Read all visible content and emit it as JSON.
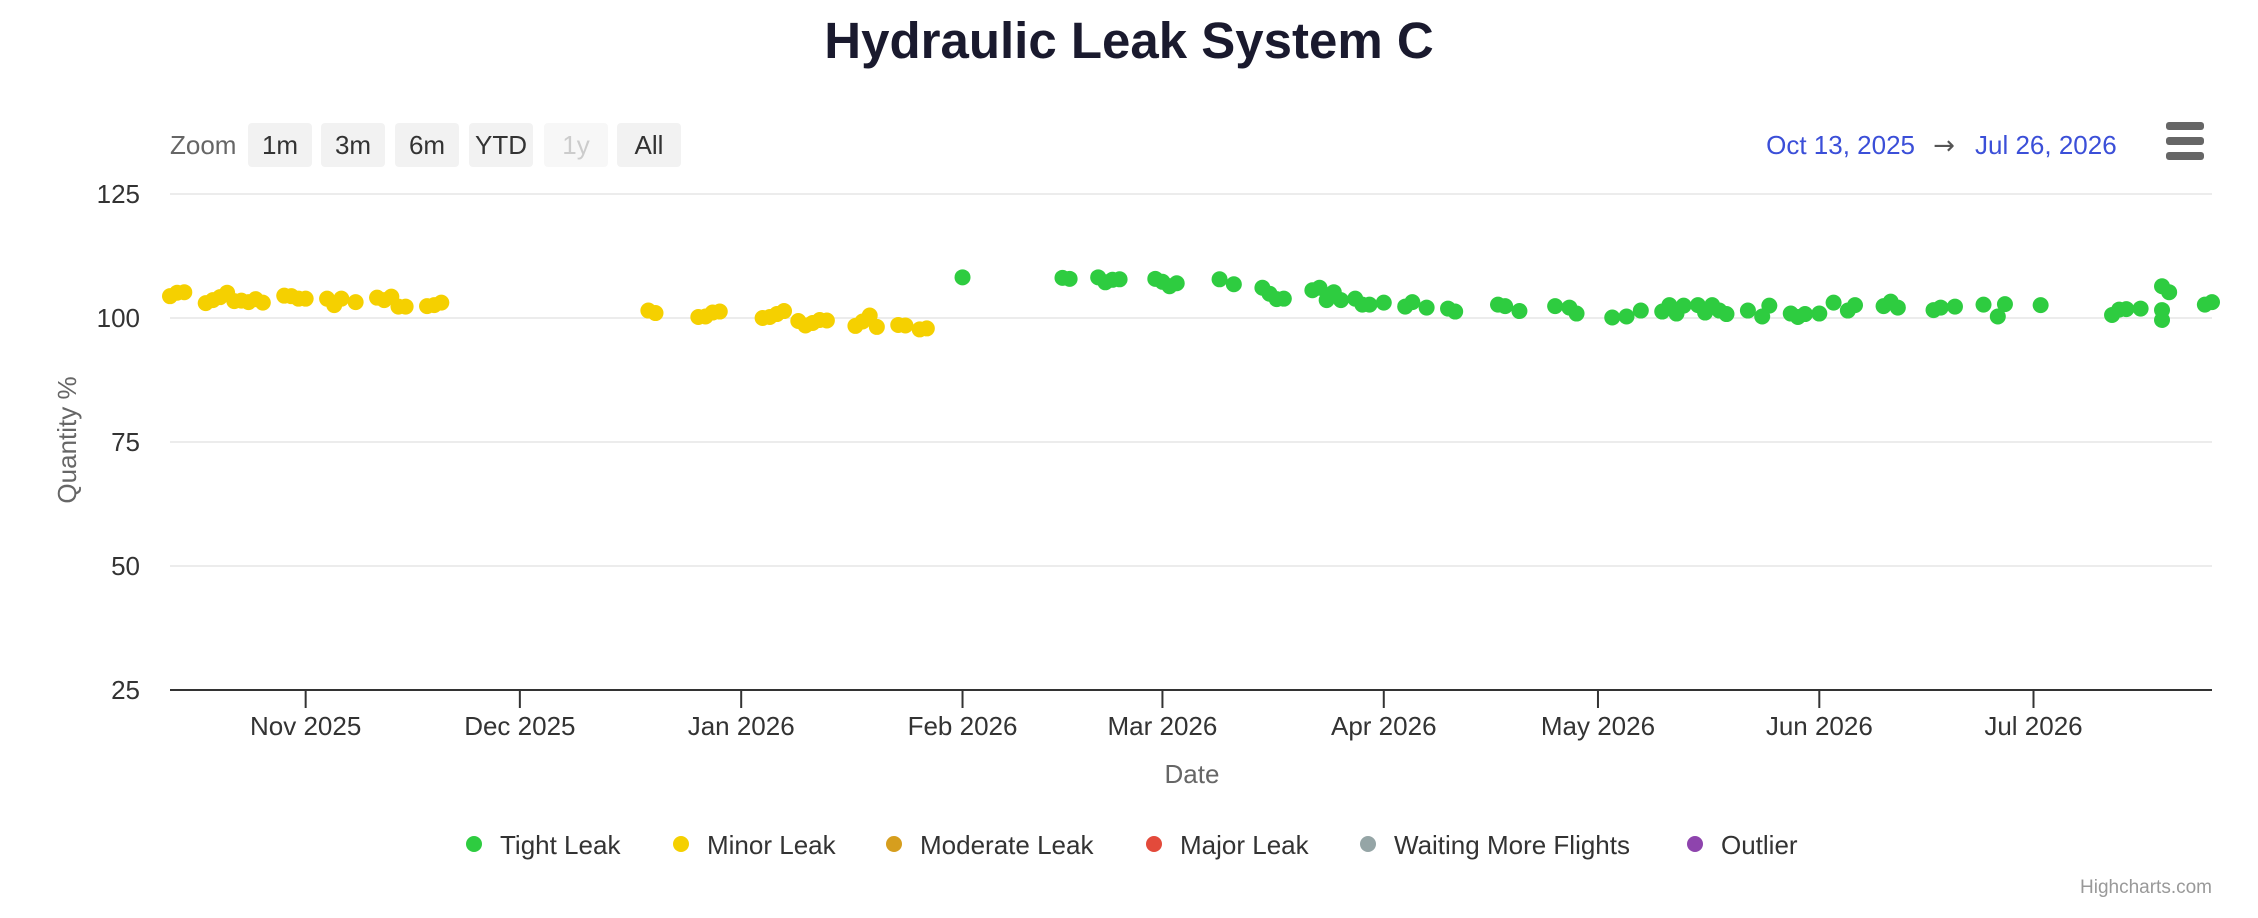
{
  "chart_data": {
    "type": "scatter",
    "title": "Hydraulic Leak System C",
    "xlabel": "Date",
    "ylabel": "Quantity %",
    "x_type": "date",
    "xlim": [
      "2025-10-13",
      "2026-07-26"
    ],
    "ylim": [
      25,
      125
    ],
    "yticks": [
      25,
      50,
      75,
      100,
      125
    ],
    "xticks": [
      {
        "date": "2025-11-01",
        "label": "Nov 2025"
      },
      {
        "date": "2025-12-01",
        "label": "Dec 2025"
      },
      {
        "date": "2026-01-01",
        "label": "Jan 2026"
      },
      {
        "date": "2026-02-01",
        "label": "Feb 2026"
      },
      {
        "date": "2026-03-01",
        "label": "Mar 2026"
      },
      {
        "date": "2026-04-01",
        "label": "Apr 2026"
      },
      {
        "date": "2026-05-01",
        "label": "May 2026"
      },
      {
        "date": "2026-06-01",
        "label": "Jun 2026"
      },
      {
        "date": "2026-07-01",
        "label": "Jul 2026"
      }
    ],
    "grid": true,
    "legend_position": "bottom-center",
    "series": [
      {
        "name": "Tight Leak",
        "color": "#2ecc40",
        "points": [
          [
            "2026-02-01",
            108.2
          ],
          [
            "2026-02-15",
            108.1
          ],
          [
            "2026-02-16",
            107.9
          ],
          [
            "2026-02-20",
            108.2
          ],
          [
            "2026-02-21",
            107.2
          ],
          [
            "2026-02-22",
            107.7
          ],
          [
            "2026-02-23",
            107.8
          ],
          [
            "2026-02-28",
            107.9
          ],
          [
            "2026-03-01",
            107.3
          ],
          [
            "2026-03-02",
            106.4
          ],
          [
            "2026-03-03",
            107.0
          ],
          [
            "2026-03-09",
            107.8
          ],
          [
            "2026-03-11",
            106.8
          ],
          [
            "2026-03-15",
            106.1
          ],
          [
            "2026-03-16",
            104.9
          ],
          [
            "2026-03-17",
            103.8
          ],
          [
            "2026-03-18",
            103.9
          ],
          [
            "2026-03-22",
            105.6
          ],
          [
            "2026-03-23",
            106.1
          ],
          [
            "2026-03-24",
            103.6
          ],
          [
            "2026-03-25",
            105.2
          ],
          [
            "2026-03-26",
            103.6
          ],
          [
            "2026-03-28",
            103.9
          ],
          [
            "2026-03-29",
            102.7
          ],
          [
            "2026-03-30",
            102.7
          ],
          [
            "2026-04-01",
            103.1
          ],
          [
            "2026-04-04",
            102.3
          ],
          [
            "2026-04-05",
            103.2
          ],
          [
            "2026-04-07",
            102.1
          ],
          [
            "2026-04-10",
            101.9
          ],
          [
            "2026-04-11",
            101.3
          ],
          [
            "2026-04-17",
            102.7
          ],
          [
            "2026-04-18",
            102.4
          ],
          [
            "2026-04-20",
            101.4
          ],
          [
            "2026-04-25",
            102.4
          ],
          [
            "2026-04-27",
            102.1
          ],
          [
            "2026-04-28",
            100.9
          ],
          [
            "2026-05-03",
            100.1
          ],
          [
            "2026-05-05",
            100.3
          ],
          [
            "2026-05-07",
            101.5
          ],
          [
            "2026-05-10",
            101.3
          ],
          [
            "2026-05-11",
            102.6
          ],
          [
            "2026-05-12",
            100.9
          ],
          [
            "2026-05-13",
            102.5
          ],
          [
            "2026-05-15",
            102.6
          ],
          [
            "2026-05-16",
            101.1
          ],
          [
            "2026-05-17",
            102.6
          ],
          [
            "2026-05-18",
            101.5
          ],
          [
            "2026-05-19",
            100.8
          ],
          [
            "2026-05-22",
            101.5
          ],
          [
            "2026-05-24",
            100.3
          ],
          [
            "2026-05-25",
            102.5
          ],
          [
            "2026-05-28",
            100.9
          ],
          [
            "2026-05-29",
            100.2
          ],
          [
            "2026-05-30",
            100.8
          ],
          [
            "2026-06-01",
            100.9
          ],
          [
            "2026-06-03",
            103.1
          ],
          [
            "2026-06-05",
            101.5
          ],
          [
            "2026-06-06",
            102.6
          ],
          [
            "2026-06-10",
            102.4
          ],
          [
            "2026-06-11",
            103.3
          ],
          [
            "2026-06-12",
            102.1
          ],
          [
            "2026-06-17",
            101.6
          ],
          [
            "2026-06-18",
            102.1
          ],
          [
            "2026-06-20",
            102.3
          ],
          [
            "2026-06-24",
            102.7
          ],
          [
            "2026-06-26",
            100.3
          ],
          [
            "2026-06-27",
            102.8
          ],
          [
            "2026-07-02",
            102.6
          ],
          [
            "2026-07-12",
            100.6
          ],
          [
            "2026-07-13",
            101.7
          ],
          [
            "2026-07-14",
            101.8
          ],
          [
            "2026-07-16",
            101.9
          ],
          [
            "2026-07-19",
            101.6
          ],
          [
            "2026-07-19",
            99.6
          ],
          [
            "2026-07-19",
            106.4
          ],
          [
            "2026-07-20",
            105.2
          ],
          [
            "2026-07-25",
            102.7
          ],
          [
            "2026-07-26",
            103.2
          ]
        ]
      },
      {
        "name": "Minor Leak",
        "color": "#f5d000",
        "points": [
          [
            "2025-10-13",
            104.4
          ],
          [
            "2025-10-14",
            105.1
          ],
          [
            "2025-10-15",
            105.2
          ],
          [
            "2025-10-18",
            103.0
          ],
          [
            "2025-10-19",
            103.6
          ],
          [
            "2025-10-20",
            104.2
          ],
          [
            "2025-10-21",
            105.1
          ],
          [
            "2025-10-22",
            103.4
          ],
          [
            "2025-10-23",
            103.5
          ],
          [
            "2025-10-24",
            103.2
          ],
          [
            "2025-10-25",
            103.8
          ],
          [
            "2025-10-26",
            103.1
          ],
          [
            "2025-10-29",
            104.5
          ],
          [
            "2025-10-30",
            104.4
          ],
          [
            "2025-10-31",
            103.9
          ],
          [
            "2025-11-01",
            103.9
          ],
          [
            "2025-11-04",
            103.9
          ],
          [
            "2025-11-05",
            102.6
          ],
          [
            "2025-11-06",
            103.9
          ],
          [
            "2025-11-08",
            103.2
          ],
          [
            "2025-11-11",
            104.1
          ],
          [
            "2025-11-12",
            103.6
          ],
          [
            "2025-11-13",
            104.3
          ],
          [
            "2025-11-14",
            102.3
          ],
          [
            "2025-11-15",
            102.3
          ],
          [
            "2025-11-18",
            102.4
          ],
          [
            "2025-11-19",
            102.6
          ],
          [
            "2025-11-20",
            103.1
          ],
          [
            "2025-12-19",
            101.5
          ],
          [
            "2025-12-20",
            101.0
          ],
          [
            "2025-12-26",
            100.2
          ],
          [
            "2025-12-27",
            100.3
          ],
          [
            "2025-12-28",
            101.1
          ],
          [
            "2025-12-29",
            101.3
          ],
          [
            "2026-01-04",
            100.0
          ],
          [
            "2026-01-05",
            100.2
          ],
          [
            "2026-01-06",
            100.8
          ],
          [
            "2026-01-07",
            101.4
          ],
          [
            "2026-01-09",
            99.4
          ],
          [
            "2026-01-10",
            98.5
          ],
          [
            "2026-01-11",
            99.0
          ],
          [
            "2026-01-12",
            99.6
          ],
          [
            "2026-01-13",
            99.5
          ],
          [
            "2026-01-17",
            98.4
          ],
          [
            "2026-01-18",
            99.3
          ],
          [
            "2026-01-19",
            100.5
          ],
          [
            "2026-01-20",
            98.2
          ],
          [
            "2026-01-23",
            98.6
          ],
          [
            "2026-01-24",
            98.5
          ],
          [
            "2026-01-26",
            97.7
          ],
          [
            "2026-01-27",
            97.9
          ]
        ]
      },
      {
        "name": "Moderate Leak",
        "color": "#d69e1e",
        "points": []
      },
      {
        "name": "Major Leak",
        "color": "#e34a3b",
        "points": []
      },
      {
        "name": "Waiting More Flights",
        "color": "#95a5a6",
        "points": []
      },
      {
        "name": "Outlier",
        "color": "#8e44ad",
        "points": []
      }
    ]
  },
  "toolbar": {
    "zoom_label": "Zoom",
    "zoom_buttons": [
      {
        "label": "1m",
        "enabled": true
      },
      {
        "label": "3m",
        "enabled": true
      },
      {
        "label": "6m",
        "enabled": true
      },
      {
        "label": "YTD",
        "enabled": true
      },
      {
        "label": "1y",
        "enabled": false
      },
      {
        "label": "All",
        "enabled": true
      }
    ],
    "range_from": "Oct 13, 2025",
    "range_arrow": "→",
    "range_to": "Jul 26, 2026"
  },
  "icons": {
    "menu": "hamburger-menu-icon"
  },
  "credits": "Highcharts.com"
}
